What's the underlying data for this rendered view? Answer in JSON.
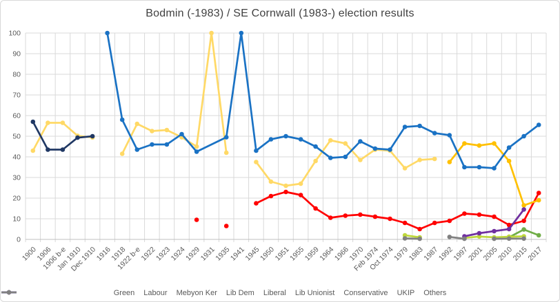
{
  "chart_data": {
    "type": "line",
    "title": "Bodmin (-1983) / SE Cornwall (1983-) election results",
    "xlabel": "",
    "ylabel": "",
    "y_axis": {
      "min": 0,
      "max": 100,
      "step": 10
    },
    "grid": true,
    "legend_position": "bottom",
    "axis_text_color": "#595959",
    "grid_color": "#d9d9d9",
    "axis_line_color": "#bfbfbf",
    "categories": [
      "1900",
      "1906",
      "1906 b-e",
      "Jan 1910",
      "Dec 1910",
      "1916",
      "1918",
      "1922 b-e",
      "1922",
      "1923",
      "1924",
      "1929",
      "1931",
      "1935",
      "1941",
      "1945",
      "1950",
      "1951",
      "1955",
      "1959",
      "1964",
      "1966",
      "1970",
      "Feb 1974",
      "Oct 1974",
      "1979",
      "1983",
      "1987",
      "1992",
      "1997",
      "2001",
      "2005",
      "2010",
      "2015",
      "2017"
    ],
    "series": [
      {
        "name": "Green",
        "color": "#70AD47",
        "bridge_gaps": false,
        "values": [
          null,
          null,
          null,
          null,
          null,
          null,
          null,
          null,
          null,
          null,
          null,
          null,
          null,
          null,
          null,
          null,
          null,
          null,
          null,
          null,
          null,
          null,
          null,
          null,
          null,
          null,
          null,
          null,
          null,
          null,
          null,
          null,
          1,
          4.8,
          2
        ]
      },
      {
        "name": "Labour",
        "color": "#FF0000",
        "bridge_gaps": false,
        "values": [
          null,
          null,
          null,
          null,
          null,
          null,
          null,
          null,
          null,
          null,
          null,
          9.5,
          null,
          6.5,
          null,
          17.5,
          21,
          23,
          21.5,
          15,
          10.5,
          11.5,
          12,
          11,
          10,
          8,
          5,
          8,
          9,
          12.5,
          12,
          11,
          7,
          9,
          22.5
        ]
      },
      {
        "name": "Mebyon Ker",
        "color": "#BFD83C",
        "bridge_gaps": false,
        "values": [
          null,
          null,
          null,
          null,
          null,
          null,
          null,
          null,
          null,
          null,
          null,
          null,
          null,
          null,
          null,
          null,
          null,
          null,
          null,
          null,
          null,
          null,
          null,
          null,
          null,
          2,
          1,
          null,
          null,
          0.7,
          1.4,
          1,
          1.3,
          1.5,
          null
        ]
      },
      {
        "name": "Lib Dem",
        "color": "#FFC000",
        "bridge_gaps": false,
        "values": [
          null,
          null,
          null,
          null,
          null,
          null,
          null,
          null,
          null,
          null,
          null,
          null,
          null,
          null,
          null,
          null,
          null,
          null,
          null,
          null,
          null,
          null,
          null,
          null,
          null,
          null,
          null,
          null,
          37.5,
          46.5,
          45.5,
          46.5,
          38,
          16.5,
          19
        ]
      },
      {
        "name": "Liberal",
        "color": "#FFD966",
        "bridge_gaps": false,
        "values": [
          43,
          56.5,
          56.5,
          50.2,
          49.4,
          null,
          41.5,
          56,
          52.5,
          53,
          49.5,
          45,
          100,
          42,
          null,
          37.5,
          28,
          26,
          27,
          38,
          48,
          46.5,
          38.5,
          43.5,
          43,
          34.5,
          38.5,
          39,
          null,
          null,
          null,
          null,
          null,
          null,
          null
        ]
      },
      {
        "name": "Lib Unionist",
        "color": "#203864",
        "bridge_gaps": false,
        "values": [
          57,
          43.5,
          43.5,
          49.3,
          50,
          null,
          null,
          null,
          null,
          null,
          null,
          null,
          null,
          null,
          null,
          null,
          null,
          null,
          null,
          null,
          null,
          null,
          null,
          null,
          null,
          null,
          null,
          null,
          null,
          null,
          null,
          null,
          null,
          null,
          null
        ]
      },
      {
        "name": "Conservative",
        "color": "#1A72C4",
        "bridge_gaps": true,
        "values": [
          null,
          null,
          null,
          null,
          null,
          100,
          58,
          43.5,
          46,
          46,
          51,
          42.5,
          null,
          49.5,
          100,
          43,
          48.5,
          50,
          48.5,
          45,
          39.5,
          40,
          47.5,
          44,
          43.5,
          54.5,
          55,
          51.5,
          50.5,
          35,
          35,
          34.5,
          44.5,
          50,
          55.5
        ]
      },
      {
        "name": "UKIP",
        "color": "#7030A0",
        "bridge_gaps": false,
        "values": [
          null,
          null,
          null,
          null,
          null,
          null,
          null,
          null,
          null,
          null,
          null,
          null,
          null,
          null,
          null,
          null,
          null,
          null,
          null,
          null,
          null,
          null,
          null,
          null,
          null,
          null,
          null,
          null,
          null,
          1.5,
          3,
          4,
          5,
          14.5,
          null
        ]
      },
      {
        "name": "Others",
        "color": "#808080",
        "bridge_gaps": false,
        "values": [
          null,
          null,
          null,
          null,
          null,
          null,
          null,
          null,
          null,
          null,
          null,
          null,
          null,
          null,
          null,
          null,
          null,
          null,
          null,
          null,
          null,
          null,
          null,
          null,
          null,
          0.5,
          0.3,
          null,
          1.2,
          0.3,
          null,
          0.3,
          0.4,
          0.4,
          null
        ]
      }
    ]
  }
}
